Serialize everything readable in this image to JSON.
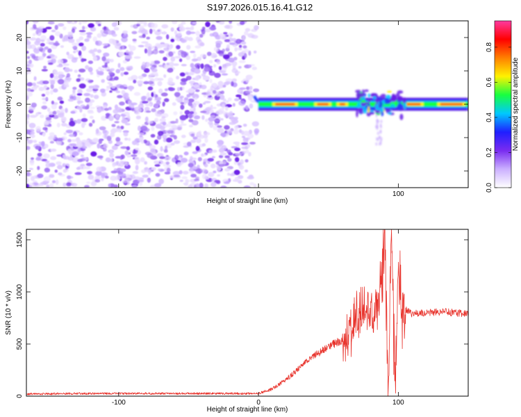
{
  "title": "S197.2026.015.16.41.G12",
  "colors": {
    "snr_line": "#e8332c",
    "bg": "#ffffff",
    "axis": "#000000",
    "noise": "#7a3ff0"
  },
  "chart_data": [
    {
      "type": "heatmap",
      "name": "spectrogram",
      "xlabel": "Height of straight line (km)",
      "ylabel": "Frequency (Hz)",
      "xlim": [
        -166,
        150
      ],
      "ylim": [
        -25,
        25
      ],
      "xticks": [
        {
          "v": -100,
          "label": "-100"
        },
        {
          "v": 0,
          "label": "0"
        },
        {
          "v": 100,
          "label": "100"
        }
      ],
      "yticks": [
        {
          "v": 20,
          "label": "20"
        },
        {
          "v": 10,
          "label": "10"
        },
        {
          "v": 0,
          "label": "0"
        },
        {
          "v": -10,
          "label": "-10"
        },
        {
          "v": -20,
          "label": "-20"
        }
      ],
      "noise_region_km": [
        -166,
        -8
      ],
      "signal_band": {
        "x_start": 0,
        "x_end": 150,
        "freq_center": 0,
        "freq_halfwidth": 1.5
      },
      "disturbance_km": [
        70,
        105
      ],
      "colorbar": {
        "label": "Normalized spectral amplitude",
        "range": [
          0.0,
          0.95
        ],
        "ticks": [
          {
            "v": 0.0,
            "label": "0.0"
          },
          {
            "v": 0.2,
            "label": "0.2"
          },
          {
            "v": 0.4,
            "label": "0.4"
          },
          {
            "v": 0.6,
            "label": "0.6"
          },
          {
            "v": 0.8,
            "label": "0.8"
          }
        ],
        "stops": [
          "#ffffff",
          "#cbb0ff",
          "#7a2cf0",
          "#1f1fff",
          "#00c8ff",
          "#18ff40",
          "#fff200",
          "#ff8000",
          "#ff0000",
          "#ff3aa0"
        ]
      }
    },
    {
      "type": "line",
      "name": "snr",
      "xlabel": "Height of straight line (km)",
      "ylabel": "SNR (10 * v/v)",
      "xlim": [
        -166,
        150
      ],
      "ylim": [
        0,
        1600
      ],
      "xticks": [
        {
          "v": -100,
          "label": "-100"
        },
        {
          "v": 0,
          "label": "0"
        },
        {
          "v": 100,
          "label": "100"
        }
      ],
      "yticks": [
        {
          "v": 0,
          "label": "0"
        },
        {
          "v": 500,
          "label": "500"
        },
        {
          "v": 1000,
          "label": "1000"
        },
        {
          "v": 1500,
          "label": "1500"
        }
      ],
      "series": [
        {
          "name": "SNR",
          "color": "#e8332c",
          "x": [
            -166,
            -130,
            -100,
            -60,
            -20,
            0,
            10,
            20,
            30,
            40,
            50,
            60,
            65,
            70,
            75,
            80,
            85,
            90,
            93,
            95,
            98,
            100,
            102,
            105,
            110,
            120,
            130,
            140,
            150
          ],
          "y": [
            20,
            25,
            25,
            25,
            25,
            25,
            70,
            160,
            280,
            390,
            470,
            540,
            620,
            730,
            780,
            800,
            830,
            1560,
            60,
            1560,
            80,
            1300,
            700,
            830,
            790,
            800,
            810,
            800,
            790
          ]
        }
      ]
    }
  ]
}
